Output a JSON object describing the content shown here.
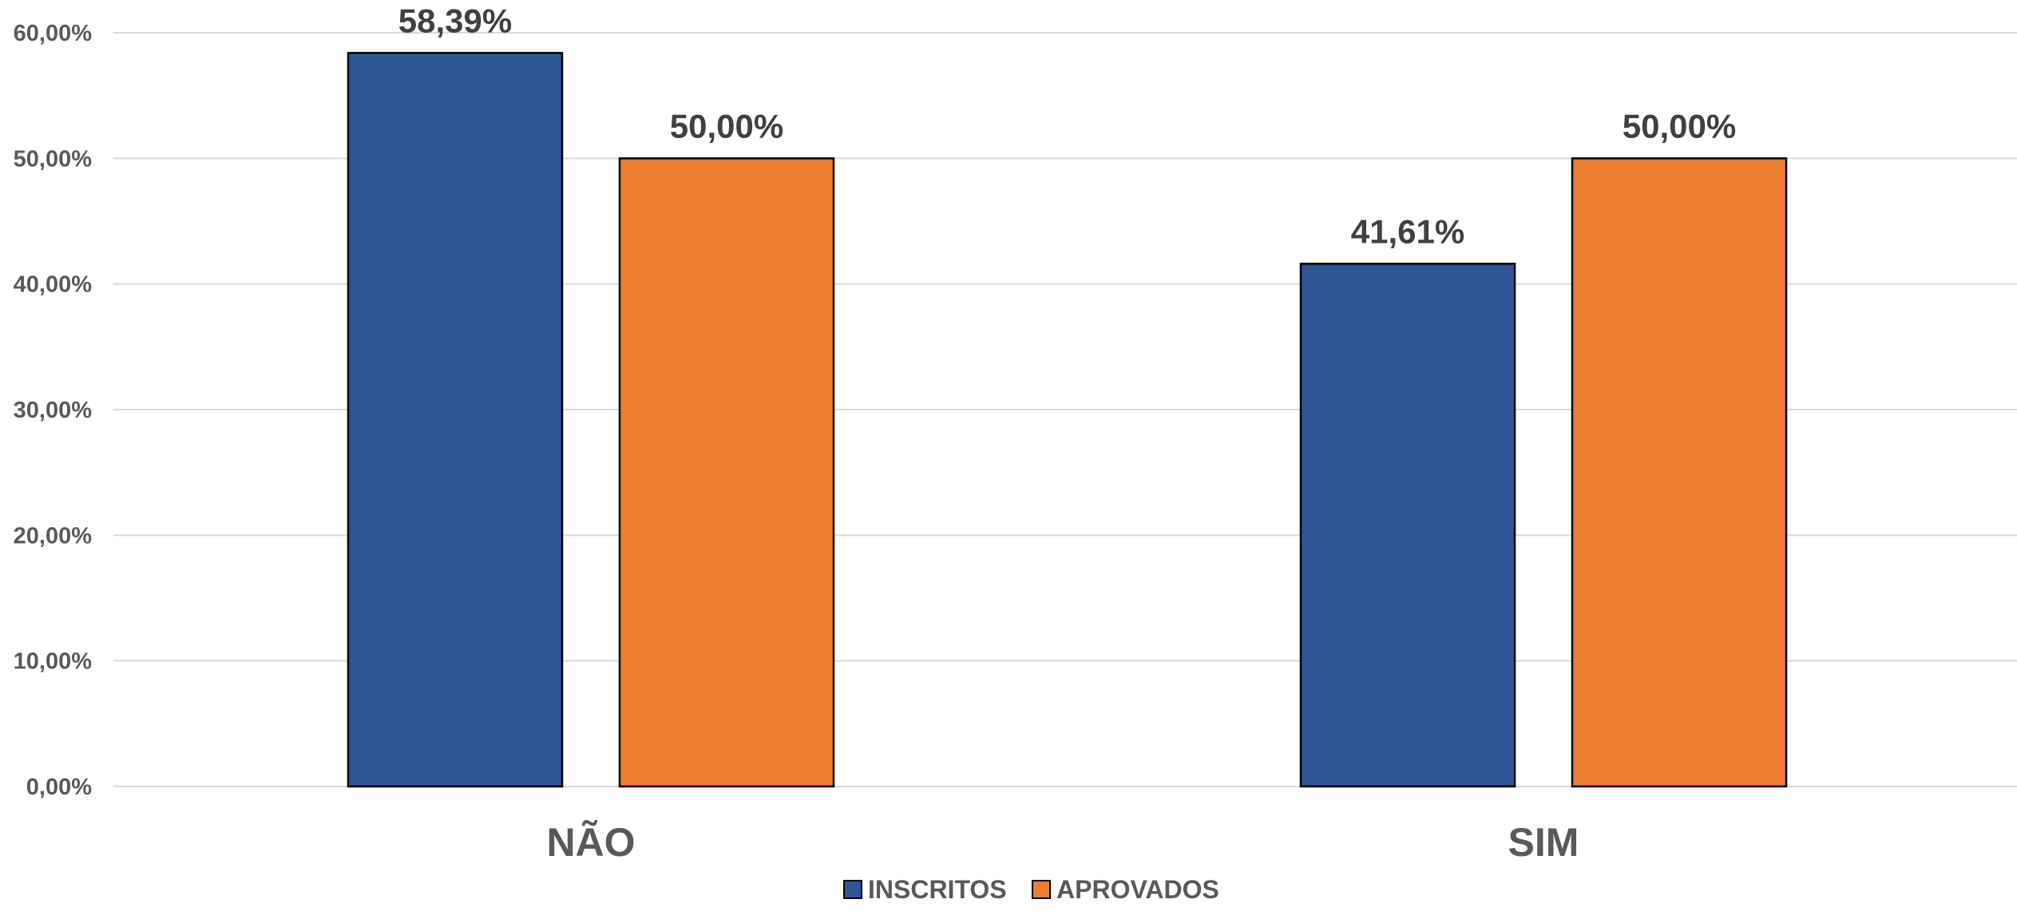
{
  "chart_data": {
    "type": "bar",
    "categories": [
      "NÃO",
      "SIM"
    ],
    "series": [
      {
        "name": "INSCRITOS",
        "color": "#2F5597",
        "values": [
          58.39,
          41.61
        ],
        "labels": [
          "58,39%",
          "41,61%"
        ]
      },
      {
        "name": "APROVADOS",
        "color": "#ED7D31",
        "values": [
          50.0,
          50.0
        ],
        "labels": [
          "50,00%",
          "50,00%"
        ]
      }
    ],
    "ylim": [
      0,
      60
    ],
    "yticks": [
      0,
      10,
      20,
      30,
      40,
      50,
      60
    ],
    "ytick_labels": [
      "0,00%",
      "10,00%",
      "20,00%",
      "30,00%",
      "40,00%",
      "50,00%",
      "60,00%"
    ],
    "grid": true,
    "legend_position": "bottom",
    "title": "",
    "xlabel": "",
    "ylabel": ""
  }
}
